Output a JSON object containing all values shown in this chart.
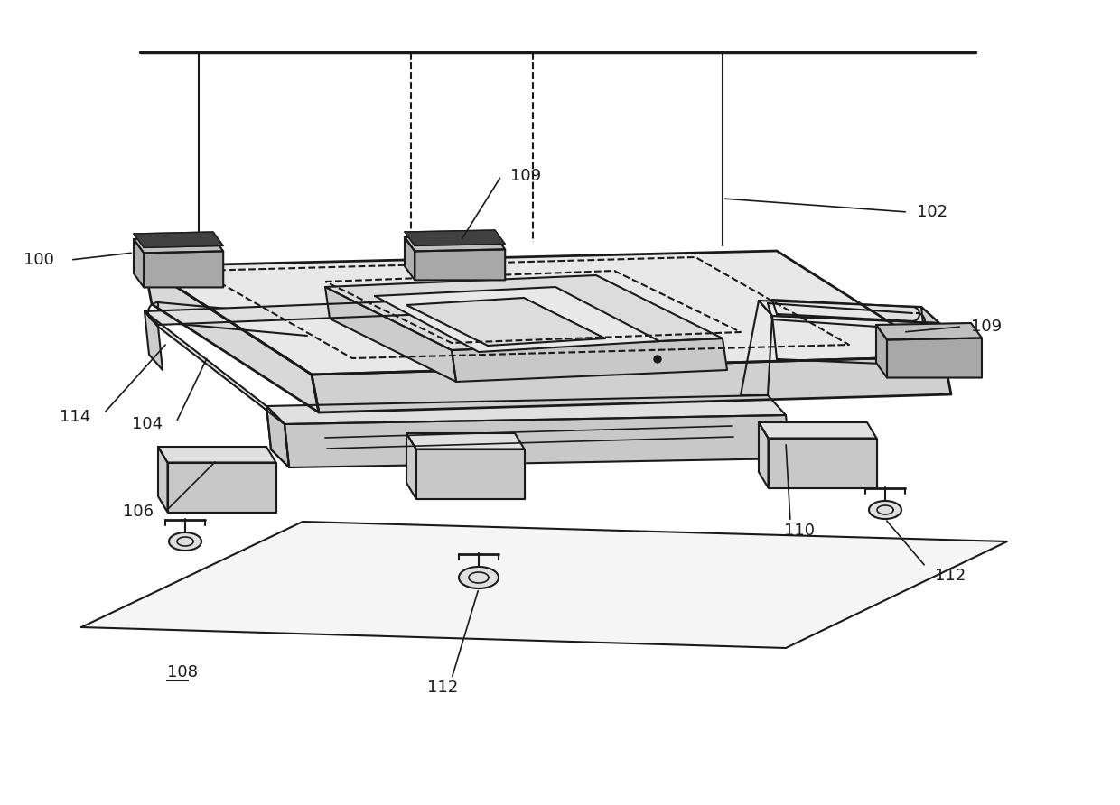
{
  "bg_color": "#ffffff",
  "line_color": "#1a1a1a",
  "lw_main": 2.0,
  "lw_detail": 1.5,
  "lw_thin": 1.2,
  "font_size": 13,
  "fills": {
    "top_deck": "#e8e8e8",
    "front_face": "#d0d0d0",
    "left_face": "#d8d8d8",
    "beam_top": "#e0e0e0",
    "beam_front": "#c8c8c8",
    "beam_side": "#cccccc",
    "handle_top": "#c0c0c0",
    "handle_front": "#a8a8a8",
    "handle_side": "#b0b0b0",
    "dark_bar": "#404040",
    "inner_platform": "#dcdcdc",
    "floor": "#f5f5f5",
    "caster": "#e0e0e0"
  }
}
